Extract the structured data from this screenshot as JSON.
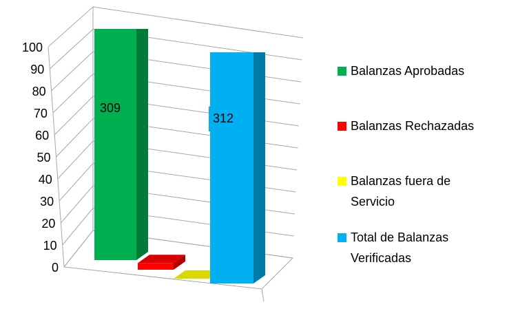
{
  "chart_data": {
    "type": "bar3d",
    "series": [
      {
        "name": "Balanzas Aprobadas",
        "color": "#00b050",
        "values": [
          309
        ]
      },
      {
        "name": "Balanzas Rechazadas",
        "color": "#ff0000",
        "values": [
          3
        ]
      },
      {
        "name": "Balanzas fuera de Servicio",
        "color": "#ffff00",
        "values": [
          0
        ]
      },
      {
        "name": "Total de Balanzas Verificadas",
        "color": "#00b0f0",
        "values": [
          312
        ]
      }
    ],
    "data_labels": [
      true,
      false,
      false,
      true
    ],
    "ylim": [
      0,
      100
    ],
    "yticks": [
      0,
      10,
      20,
      30,
      40,
      50,
      60,
      70,
      80,
      90,
      100
    ],
    "grid": true,
    "legend": "right"
  }
}
